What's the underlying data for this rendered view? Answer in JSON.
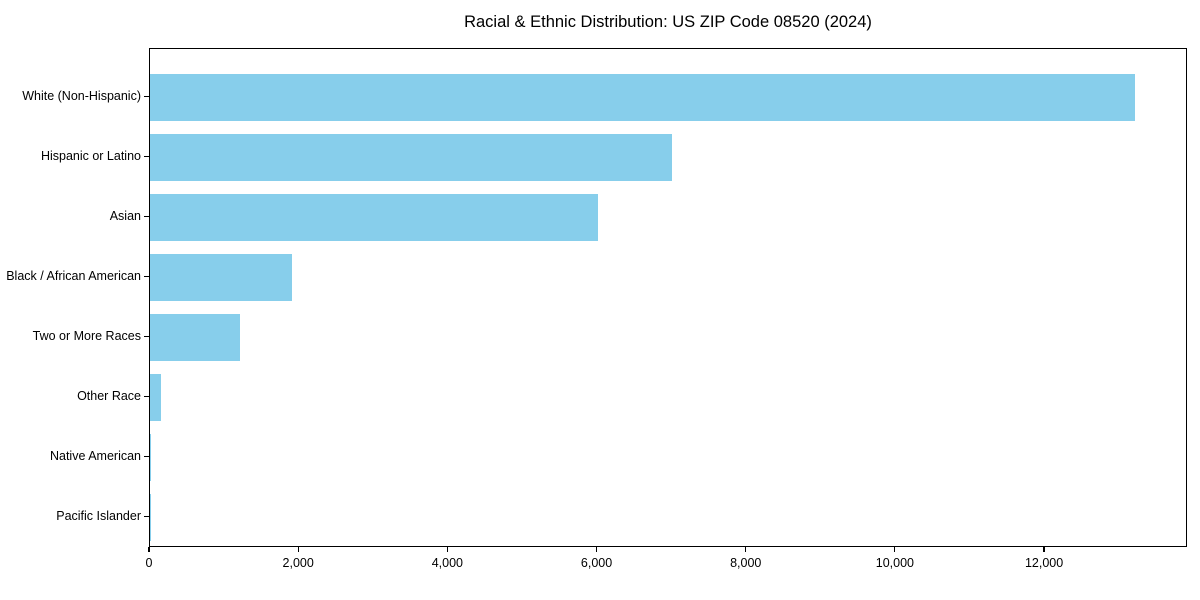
{
  "title": "Racial & Ethnic Distribution: US ZIP Code 08520 (2024)",
  "colors": {
    "bar": "#87CEEB",
    "axis": "#000000",
    "text": "#000000",
    "background": "#FFFFFF"
  },
  "chart_data": {
    "type": "bar",
    "orientation": "horizontal",
    "title": "Racial & Ethnic Distribution: US ZIP Code 08520 (2024)",
    "xlabel": "",
    "ylabel": "",
    "categories": [
      "White (Non-Hispanic)",
      "Hispanic or Latino",
      "Asian",
      "Black / African American",
      "Two or More Races",
      "Other Race",
      "Native American",
      "Pacific Islander"
    ],
    "values": [
      13200,
      7000,
      6000,
      1900,
      1200,
      150,
      20,
      5
    ],
    "xlim": [
      0,
      13884
    ],
    "xticks": [
      0,
      2000,
      4000,
      6000,
      8000,
      10000,
      12000
    ],
    "xtick_labels": [
      "0",
      "2,000",
      "4,000",
      "6,000",
      "8,000",
      "10,000",
      "12,000"
    ],
    "bar_color": "#87CEEB",
    "grid": false,
    "legend": null
  }
}
